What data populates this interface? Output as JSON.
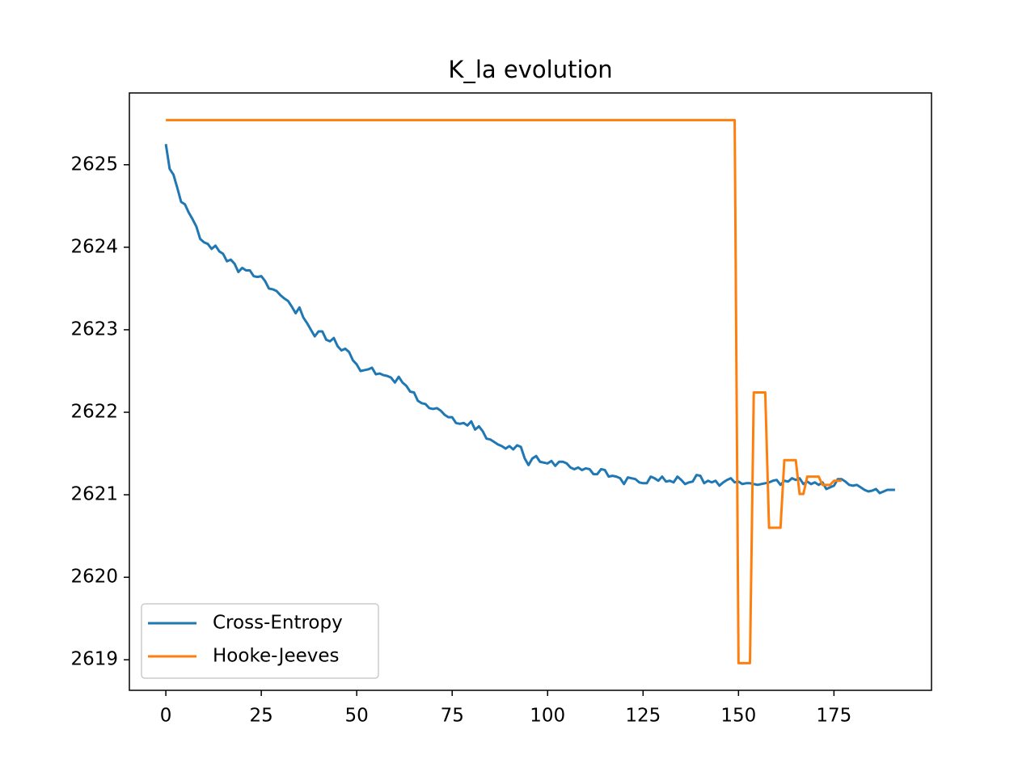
{
  "chart_data": {
    "type": "line",
    "title": "K_la evolution",
    "xlim": [
      -9.55,
      200.55
    ],
    "xticks": [
      0,
      25,
      50,
      75,
      100,
      125,
      150,
      175
    ],
    "ylim": [
      2618.63,
      2625.87
    ],
    "yticks": [
      2619,
      2620,
      2621,
      2622,
      2623,
      2624,
      2625
    ],
    "legend": "lower left",
    "series": [
      {
        "name": "Cross-Entropy",
        "color": "#1f77b4",
        "x": [
          0,
          1,
          2,
          3,
          4,
          5,
          6,
          7,
          8,
          9,
          10,
          11,
          12,
          13,
          14,
          15,
          16,
          17,
          18,
          19,
          20,
          21,
          22,
          23,
          24,
          25,
          26,
          27,
          28,
          29,
          30,
          31,
          32,
          33,
          34,
          35,
          36,
          37,
          38,
          39,
          40,
          41,
          42,
          43,
          44,
          45,
          46,
          47,
          48,
          49,
          50,
          51,
          52,
          53,
          54,
          55,
          56,
          57,
          58,
          59,
          60,
          61,
          62,
          63,
          64,
          65,
          66,
          67,
          68,
          69,
          70,
          71,
          72,
          73,
          74,
          75,
          76,
          77,
          78,
          79,
          80,
          81,
          82,
          83,
          84,
          85,
          86,
          87,
          88,
          89,
          90,
          91,
          92,
          93,
          94,
          95,
          96,
          97,
          98,
          99,
          100,
          101,
          102,
          103,
          104,
          105,
          106,
          107,
          108,
          109,
          110,
          111,
          112,
          113,
          114,
          115,
          116,
          117,
          118,
          119,
          120,
          121,
          122,
          123,
          124,
          125,
          126,
          127,
          128,
          129,
          130,
          131,
          132,
          133,
          134,
          135,
          136,
          137,
          138,
          139,
          140,
          141,
          142,
          143,
          144,
          145,
          146,
          147,
          148,
          149,
          150,
          151,
          152,
          153,
          154,
          155,
          156,
          157,
          158,
          159,
          160,
          161,
          162,
          163,
          164,
          165,
          166,
          167,
          168,
          169,
          170,
          171,
          172,
          173,
          174,
          175,
          176,
          177,
          178,
          179,
          180,
          181,
          182,
          183,
          184,
          185,
          186,
          187,
          188,
          189,
          190,
          191
        ],
        "values": [
          2625.25,
          2624.95,
          2624.88,
          2624.72,
          2624.55,
          2624.52,
          2624.42,
          2624.34,
          2624.25,
          2624.1,
          2624.06,
          2624.04,
          2623.98,
          2624.02,
          2623.95,
          2623.92,
          2623.83,
          2623.85,
          2623.8,
          2623.7,
          2623.75,
          2623.72,
          2623.72,
          2623.65,
          2623.64,
          2623.65,
          2623.59,
          2623.5,
          2623.49,
          2623.47,
          2623.42,
          2623.38,
          2623.35,
          2623.28,
          2623.2,
          2623.27,
          2623.15,
          2623.08,
          2623.0,
          2622.92,
          2622.98,
          2622.98,
          2622.88,
          2622.86,
          2622.9,
          2622.8,
          2622.75,
          2622.77,
          2622.73,
          2622.63,
          2622.58,
          2622.5,
          2622.51,
          2622.52,
          2622.54,
          2622.46,
          2622.47,
          2622.45,
          2622.44,
          2622.42,
          2622.36,
          2622.43,
          2622.36,
          2622.32,
          2622.25,
          2622.24,
          2622.14,
          2622.11,
          2622.1,
          2622.05,
          2622.04,
          2622.05,
          2622.02,
          2621.97,
          2621.94,
          2621.94,
          2621.87,
          2621.86,
          2621.87,
          2621.84,
          2621.89,
          2621.79,
          2621.83,
          2621.77,
          2621.68,
          2621.67,
          2621.64,
          2621.61,
          2621.59,
          2621.56,
          2621.59,
          2621.55,
          2621.6,
          2621.58,
          2621.44,
          2621.36,
          2621.44,
          2621.47,
          2621.4,
          2621.39,
          2621.38,
          2621.41,
          2621.35,
          2621.4,
          2621.4,
          2621.38,
          2621.33,
          2621.31,
          2621.33,
          2621.3,
          2621.32,
          2621.31,
          2621.25,
          2621.25,
          2621.31,
          2621.3,
          2621.22,
          2621.23,
          2621.22,
          2621.2,
          2621.13,
          2621.21,
          2621.2,
          2621.19,
          2621.15,
          2621.14,
          2621.14,
          2621.22,
          2621.2,
          2621.17,
          2621.22,
          2621.16,
          2621.17,
          2621.15,
          2621.22,
          2621.18,
          2621.13,
          2621.15,
          2621.16,
          2621.24,
          2621.23,
          2621.14,
          2621.17,
          2621.15,
          2621.17,
          2621.11,
          2621.15,
          2621.18,
          2621.2,
          2621.15,
          2621.16,
          2621.13,
          2621.14,
          2621.14,
          2621.13,
          2621.12,
          2621.13,
          2621.14,
          2621.15,
          2621.17,
          2621.18,
          2621.12,
          2621.17,
          2621.16,
          2621.2,
          2621.18,
          2621.2,
          2621.13,
          2621.16,
          2621.13,
          2621.15,
          2621.12,
          2621.15,
          2621.07,
          2621.09,
          2621.11,
          2621.19,
          2621.19,
          2621.16,
          2621.12,
          2621.11,
          2621.12,
          2621.09,
          2621.06,
          2621.04,
          2621.05,
          2621.07,
          2621.02,
          2621.04,
          2621.06,
          2621.06,
          2621.06
        ]
      },
      {
        "name": "Hooke-Jeeves",
        "color": "#ff7f0e",
        "x": [
          0,
          149,
          150,
          153,
          154,
          157,
          158,
          161,
          162,
          165,
          166,
          167,
          168,
          171,
          172,
          174,
          175,
          177
        ],
        "values": [
          2625.54,
          2625.54,
          2618.96,
          2618.96,
          2622.24,
          2622.24,
          2620.6,
          2620.6,
          2621.42,
          2621.42,
          2621.01,
          2621.01,
          2621.22,
          2621.22,
          2621.12,
          2621.12,
          2621.17,
          2621.17
        ]
      }
    ]
  }
}
